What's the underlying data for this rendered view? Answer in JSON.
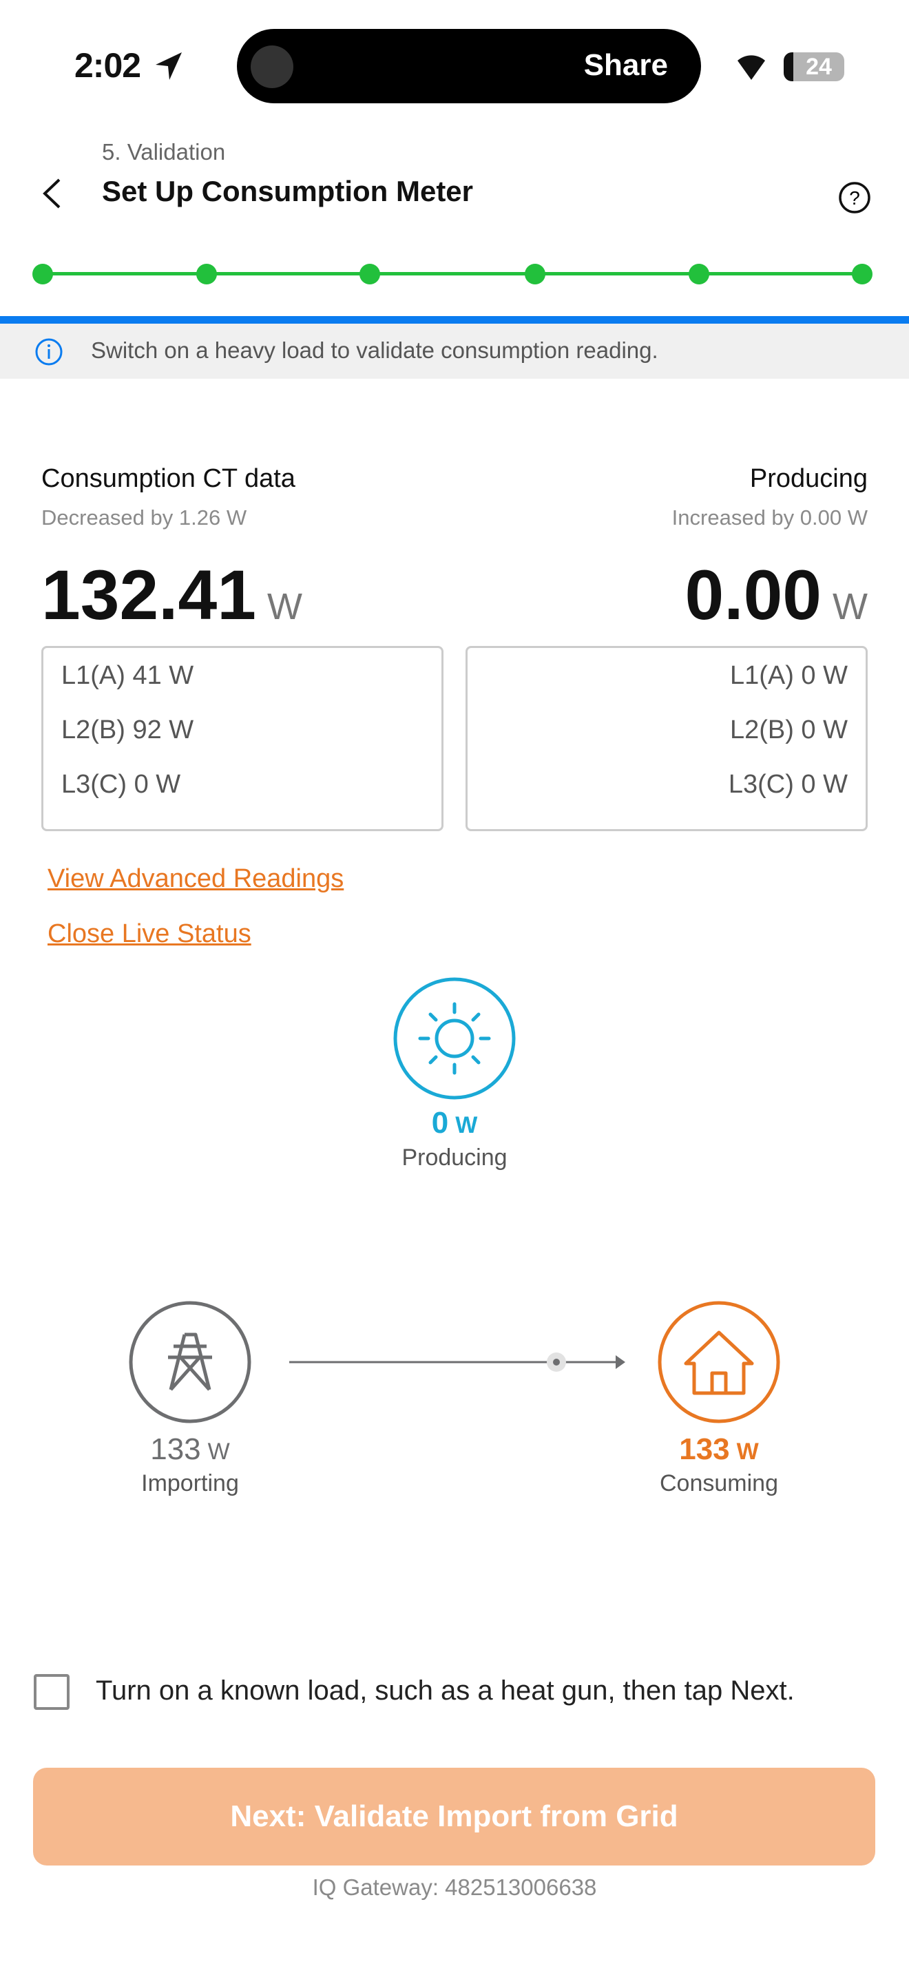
{
  "status_bar": {
    "time": "2:02",
    "share_label": "Share",
    "battery": "24"
  },
  "header": {
    "step": "5. Validation",
    "title": "Set Up Consumption Meter"
  },
  "stepper": {
    "total_steps": 6,
    "completed_steps": 6,
    "color": "#22c03c"
  },
  "info_banner": {
    "text": "Switch on a heavy load to validate consumption reading."
  },
  "consumption": {
    "label": "Consumption CT data",
    "delta": "Decreased by 1.26 W",
    "value": "132.41",
    "unit": "W",
    "phases": [
      "L1(A) 41 W",
      "L2(B) 92 W",
      "L3(C) 0 W"
    ]
  },
  "production": {
    "label": "Producing",
    "delta": "Increased by 0.00 W",
    "value": "0.00",
    "unit": "W",
    "phases": [
      "L1(A) 0 W",
      "L2(B) 0 W",
      "L3(C) 0 W"
    ]
  },
  "links": {
    "advanced": "View Advanced Readings",
    "close": "Close Live Status"
  },
  "flow": {
    "producing": {
      "value": "0",
      "unit": "W",
      "label": "Producing",
      "color": "#1aa9d6"
    },
    "importing": {
      "value": "133",
      "unit": "W",
      "label": "Importing",
      "color": "#6d6e70"
    },
    "consuming": {
      "value": "133",
      "unit": "W",
      "label": "Consuming",
      "color": "#e87722"
    }
  },
  "checkbox": {
    "label": "Turn on a known load, such as a heat gun, then tap Next.",
    "checked": false
  },
  "next_button": {
    "label": "Next: Validate Import from Grid"
  },
  "footer": {
    "gateway": "IQ Gateway: 482513006638"
  }
}
